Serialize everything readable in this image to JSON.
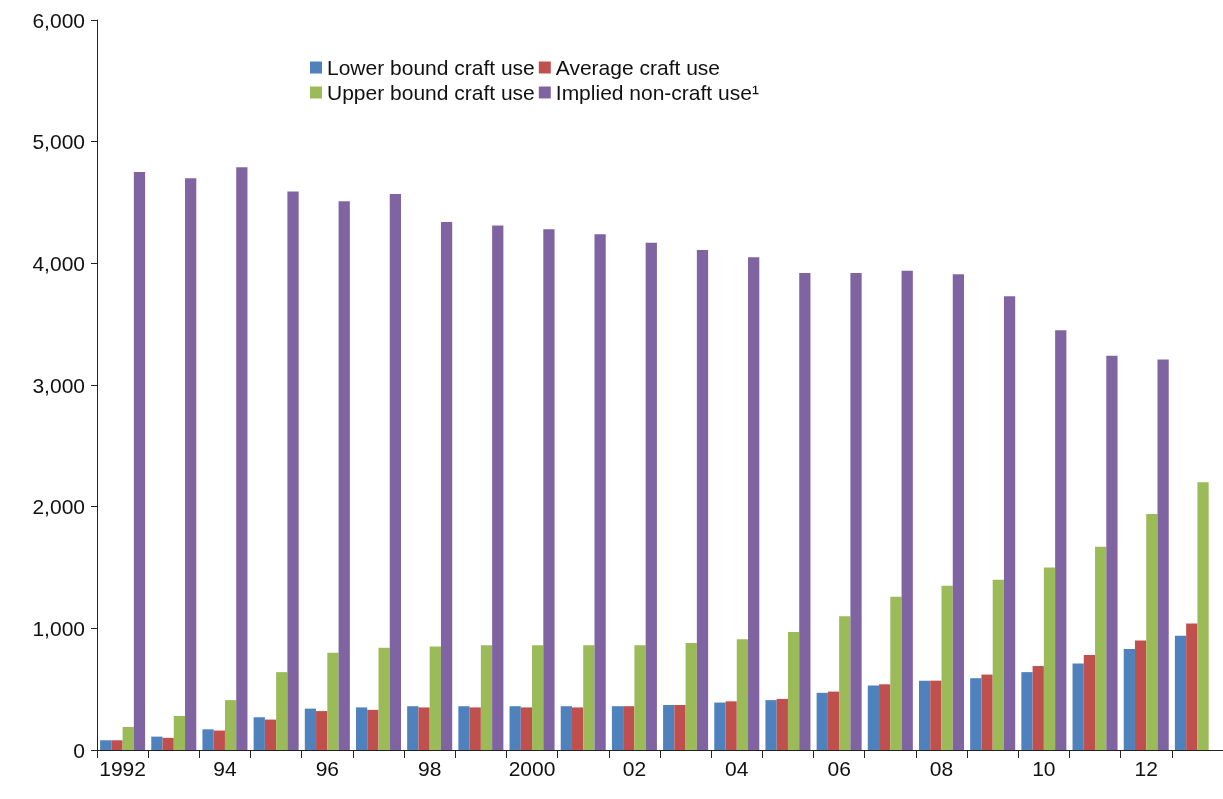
{
  "chart_data": {
    "type": "bar",
    "categories": [
      "1992",
      null,
      "94",
      null,
      "96",
      null,
      "98",
      null,
      "2000",
      null,
      "02",
      null,
      "04",
      null,
      "06",
      null,
      "08",
      null,
      "10",
      null,
      "12",
      null
    ],
    "series": [
      {
        "name": "Lower bound craft use",
        "color": "#4f81bd",
        "values": [
          80,
          110,
          170,
          270,
          340,
          350,
          360,
          360,
          360,
          360,
          360,
          370,
          390,
          410,
          470,
          530,
          570,
          590,
          640,
          710,
          830,
          940
        ]
      },
      {
        "name": "Average craft use",
        "color": "#c0504d",
        "values": [
          80,
          100,
          160,
          250,
          320,
          330,
          350,
          350,
          350,
          350,
          360,
          370,
          400,
          420,
          480,
          540,
          570,
          620,
          690,
          780,
          900,
          1040
        ]
      },
      {
        "name": "Upper bound craft use",
        "color": "#9bbb59",
        "values": [
          190,
          280,
          410,
          640,
          800,
          840,
          850,
          860,
          860,
          860,
          860,
          880,
          910,
          970,
          1100,
          1260,
          1350,
          1400,
          1500,
          1670,
          1940,
          2200
        ]
      },
      {
        "name": "Implied non-craft use¹",
        "color": "#8064a2",
        "values": [
          4750,
          4700,
          4790,
          4590,
          4510,
          4570,
          4340,
          4310,
          4280,
          4240,
          4170,
          4110,
          4050,
          3920,
          3920,
          3940,
          3910,
          3730,
          3450,
          3240,
          3210,
          null
        ]
      }
    ],
    "ylim": [
      0,
      6000
    ],
    "yticks": [
      0,
      {
        "value": 1000,
        "label": "1,000"
      },
      {
        "value": 2000,
        "label": "2,000"
      },
      {
        "value": 3000,
        "label": "3,000"
      },
      {
        "value": 4000,
        "label": "4,000"
      },
      {
        "value": 5000,
        "label": "5,000"
      },
      {
        "value": 6000,
        "label": "6,000"
      }
    ],
    "grid": false,
    "legend": "top"
  }
}
